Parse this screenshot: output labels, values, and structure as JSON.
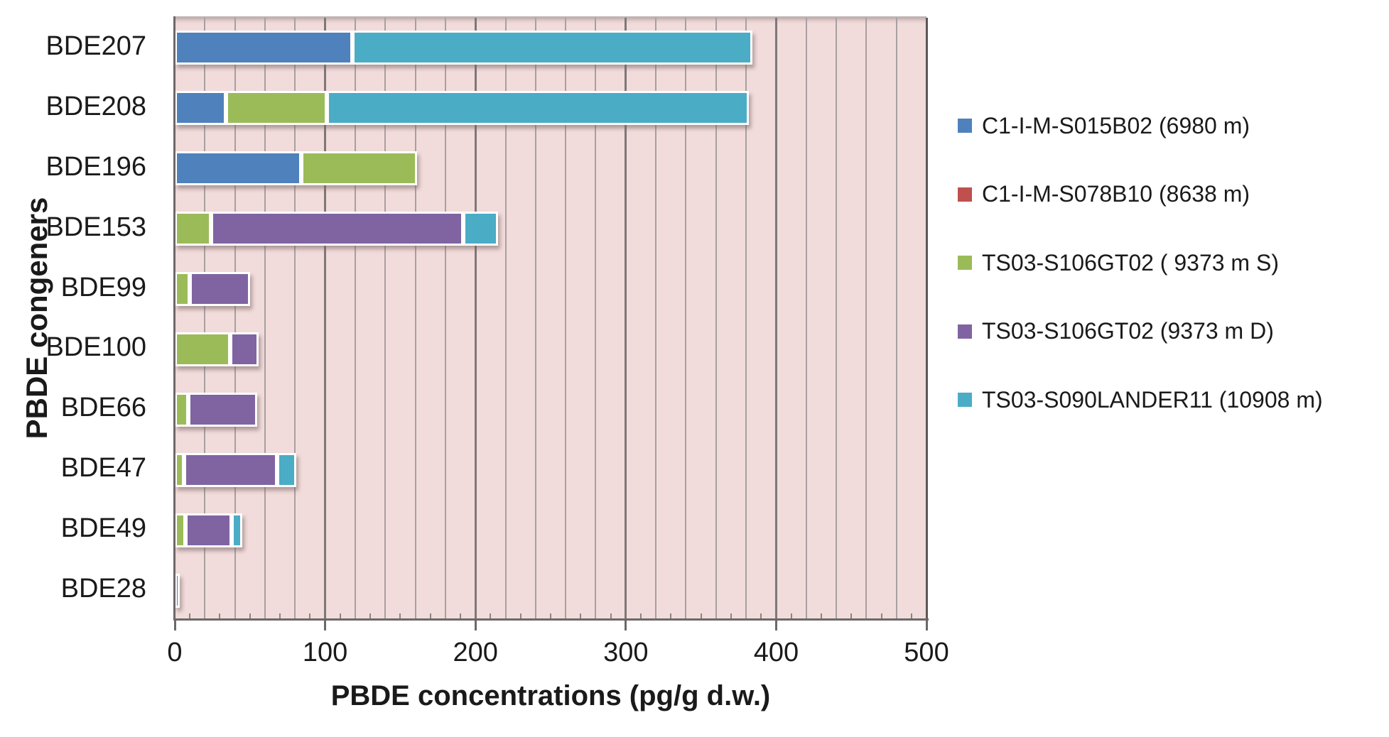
{
  "figure": {
    "background": "#ffffff",
    "text_color": "#1a1a1a"
  },
  "chart_data": {
    "type": "bar",
    "orientation": "horizontal",
    "stacked": true,
    "title": "",
    "xlabel": "PBDE concentrations (pg/g d.w.)",
    "ylabel": "PBDE congeners",
    "xlim": [
      0,
      500
    ],
    "xticks": [
      0,
      100,
      200,
      300,
      400,
      500
    ],
    "xtick_labels": [
      "0",
      "100",
      "200",
      "300",
      "400",
      "500"
    ],
    "minor_gridline_step": 20,
    "minor_axis_tick_step": 10,
    "grid": true,
    "plot_background": "#f2dcdb",
    "gridline_color_minor": "#a7a0a0",
    "gridline_color_major": "#7d7878",
    "legend_position": "right",
    "categories": [
      "BDE207",
      "BDE208",
      "BDE196",
      "BDE153",
      "BDE99",
      "BDE100",
      "BDE66",
      "BDE47",
      "BDE49",
      "BDE28"
    ],
    "series": [
      {
        "name": "C1-I-M-S015B02 (6980 m)",
        "color": "#4f81bd",
        "values": [
          118,
          34,
          84,
          0,
          0,
          0,
          0,
          0,
          0,
          0
        ]
      },
      {
        "name": "C1-I-M-S078B10 (8638 m)",
        "color": "#c0504d",
        "values": [
          0,
          0,
          0,
          0,
          0,
          0,
          0,
          0,
          0,
          0
        ]
      },
      {
        "name": "TS03-S106GT02 ( 9373 m S)",
        "color": "#9bbb59",
        "values": [
          0,
          67,
          77,
          24,
          10,
          37,
          9,
          6,
          7,
          0
        ]
      },
      {
        "name": "TS03-S106GT02 (9373 m D)",
        "color": "#8064a2",
        "values": [
          0,
          0,
          0,
          168,
          40,
          19,
          46,
          62,
          31,
          0.8
        ]
      },
      {
        "name": "TS03-S090LANDER11 (10908 m)",
        "color": "#4bacc6",
        "values": [
          266,
          281,
          0,
          23,
          0,
          0,
          0,
          13,
          7,
          0
        ]
      }
    ]
  }
}
